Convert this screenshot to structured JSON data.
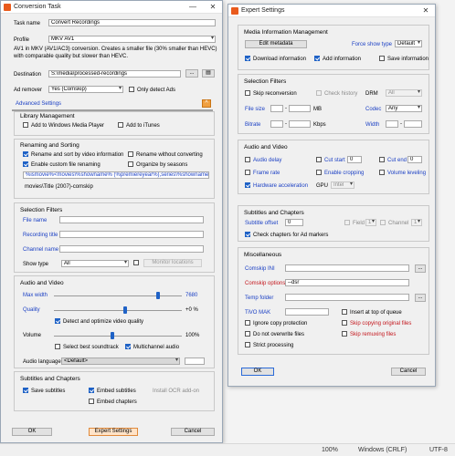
{
  "conversion_task": {
    "title": "Conversion Task",
    "task_name_label": "Task name",
    "task_name_value": "Convert Recordings",
    "profile_label": "Profile",
    "profile_value": "MKV AV1",
    "profile_desc_line1": "AV1 in MKV (AV1/AC3) conversion. Creates a smaller file (30% smaller than HEVC)",
    "profile_desc_line2": "with comparable quality but slower than HEVC.",
    "destination_label": "Destination",
    "destination_value": "S:\\media\\processed-recordings",
    "browse_label": "...",
    "ad_remover_label": "Ad remover",
    "ad_remover_value": "Yes (Comskip)",
    "only_detect_ads": "Only detect Ads",
    "advanced_settings": "Advanced Settings",
    "library_management": "Library Management",
    "add_wmp": "Add to Windows Media Player",
    "add_itunes": "Add to iTunes",
    "renaming_sorting": "Renaming and Sorting",
    "rename_sort_video_info": "Rename and sort by video information",
    "rename_without_converting": "Rename without converting",
    "enable_custom_renaming": "Enable custom file renaming",
    "organize_by_seasons": "Organize by seasons",
    "rename_pattern": "%ismovie%<movies\\%showname% (%premiereyear%),series\\%showname%",
    "rename_preview": "movies\\Title (2007)-comskip",
    "selection_filters": "Selection Filters",
    "file_name": "File name",
    "recording_title": "Recording title",
    "channel_name": "Channel name",
    "show_type": "Show type",
    "show_type_value": "All",
    "monitor_locations": "Monitor locations",
    "audio_video": "Audio and Video",
    "max_width": "Max width",
    "max_width_value": "7680",
    "quality": "Quality",
    "quality_value": "+0 %",
    "detect_optimize_quality": "Detect and optimize video quality",
    "volume": "Volume",
    "volume_value": "100%",
    "select_best_soundtrack": "Select best soundtrack",
    "multichannel_audio": "Multichannel audio",
    "audio_language": "Audio language",
    "audio_language_value": "<Default>",
    "subtitles_chapters": "Subtitles and Chapters",
    "save_subtitles": "Save subtitles",
    "embed_subtitles": "Embed subtitles",
    "install_ocr": "Install OCR add-on",
    "embed_chapters": "Embed chapters",
    "ok": "OK",
    "expert_settings_btn": "Expert Settings",
    "cancel": "Cancel"
  },
  "expert": {
    "title": "Expert Settings",
    "media_info_mgmt": "Media Information Management",
    "edit_metadata": "Edit metadata",
    "force_show_type": "Force show type",
    "force_show_type_value": "Default",
    "download_info": "Download information",
    "add_info": "Add information",
    "save_info": "Save information",
    "selection_filters": "Selection Filters",
    "skip_reconversion": "Skip reconversion",
    "check_history": "Check history",
    "drm": "DRM",
    "drm_value": "All",
    "file_size": "File size",
    "mb": "MB",
    "codec": "Codec",
    "codec_value": "Any",
    "bitrate": "Bitrate",
    "kbps": "Kbps",
    "width": "Width",
    "audio_video": "Audio and Video",
    "audio_delay": "Audio delay",
    "cut_start": "Cut start",
    "cut_start_value": "0",
    "cut_end": "Cut end",
    "cut_end_value": "0",
    "frame_rate": "Frame rate",
    "enable_cropping": "Enable cropping",
    "volume_leveling": "Volume leveling",
    "hw_accel": "Hardware acceleration",
    "gpu": "GPU",
    "gpu_value": "Intel",
    "subs_chapters": "Subtitles and Chapters",
    "subtitle_offset": "Subtitle offset",
    "subtitle_offset_value": "0",
    "field": "Field",
    "field_value": "1",
    "channel": "Channel",
    "channel_value": "1",
    "check_chapters_ad": "Check chapters for Ad markers",
    "miscellaneous": "Miscellaneous",
    "comskip_ini": "Comskip INI",
    "comskip_options": "Comskip options",
    "comskip_options_value": "--dsr",
    "temp_folder": "Temp folder",
    "tivo_mak": "TiVO MAK",
    "insert_top_queue": "Insert at top of queue",
    "ignore_copy_protection": "Ignore copy protection",
    "skip_copying_original": "Skip copying original files",
    "do_not_overwrite": "Do not overwrite files",
    "skip_remuxing": "Skip remuxing files",
    "strict_processing": "Strict processing",
    "browse": "...",
    "ok": "OK",
    "cancel": "Cancel"
  },
  "statusbar": {
    "zoom": "100%",
    "line_endings": "Windows (CRLF)",
    "encoding": "UTF-8"
  }
}
